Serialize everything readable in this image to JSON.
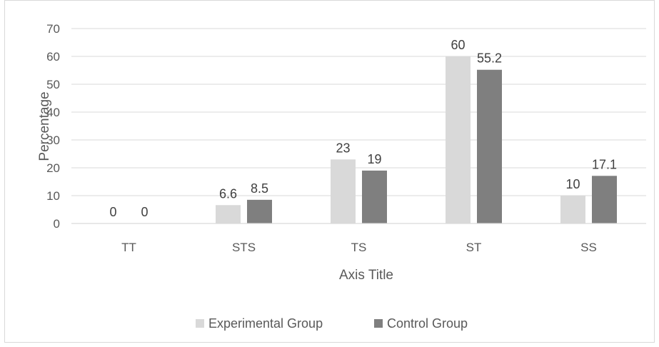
{
  "chart_data": {
    "type": "bar",
    "title": "",
    "xlabel": "Axis Title",
    "ylabel": "Percentage",
    "categories": [
      "TT",
      "STS",
      "TS",
      "ST",
      "SS"
    ],
    "series": [
      {
        "name": "Experimental Group",
        "values": [
          0,
          6.6,
          23,
          60,
          10
        ],
        "labels": [
          "0",
          "6.6",
          "23",
          "60",
          "10"
        ],
        "color": "#d9d9d9"
      },
      {
        "name": "Control Group",
        "values": [
          0,
          8.5,
          19,
          55.2,
          17.1
        ],
        "labels": [
          "0",
          "8.5",
          "19",
          "55.2",
          "17.1"
        ],
        "color": "#7f7f7f"
      }
    ],
    "ylim": [
      0,
      70
    ],
    "yticks": [
      "0",
      "10",
      "20",
      "30",
      "40",
      "50",
      "60",
      "70"
    ],
    "grid": true,
    "legend": "bottom-center",
    "gridColor": "#d9d9d9"
  }
}
